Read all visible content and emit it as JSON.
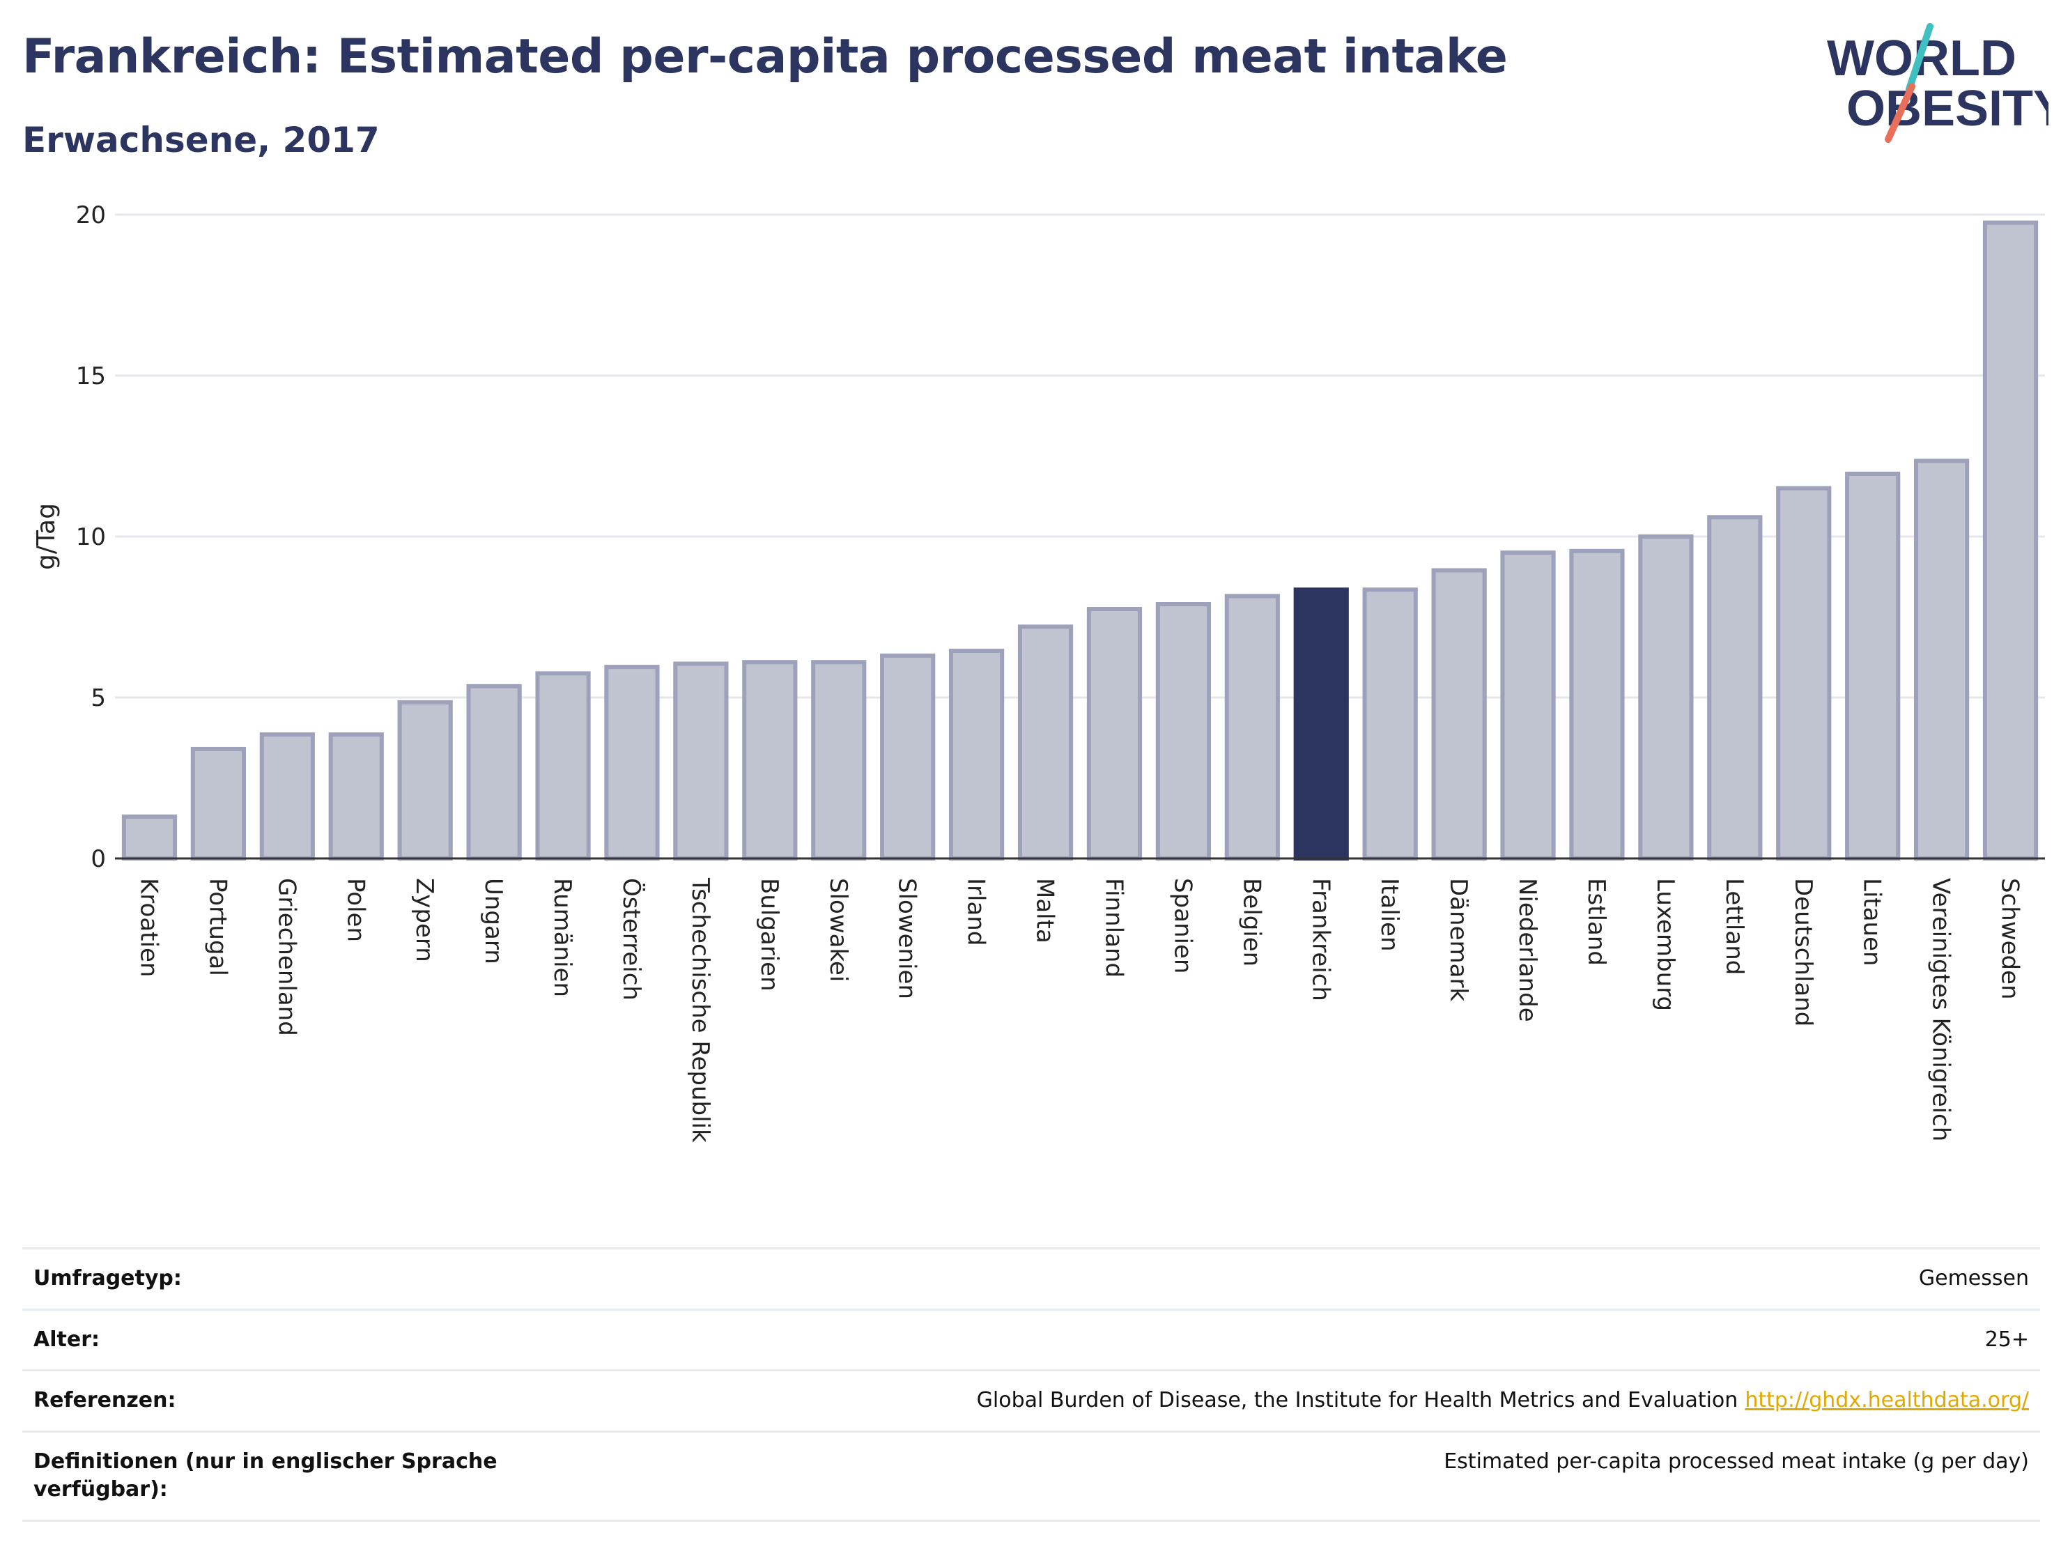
{
  "header": {
    "title": "Frankreich: Estimated per-capita processed meat intake",
    "subtitle": "Erwachsene, 2017"
  },
  "logo": {
    "line1": "WORLD",
    "line2": "OBESITY",
    "colors": {
      "text": "#2c3560",
      "slash_teal": "#3fbfbf",
      "slash_coral": "#e8705a"
    }
  },
  "chart_data": {
    "type": "bar",
    "ylabel": "g/Tag",
    "ylim": [
      0,
      20
    ],
    "yticks": [
      0,
      5,
      10,
      15,
      20
    ],
    "grid": true,
    "highlight": "Frankreich",
    "colors": {
      "bar": "#c0c3d0",
      "bar_border": "#9da1b9",
      "highlight": "#2c3560",
      "grid": "#e3e7ec"
    },
    "categories": [
      "Kroatien",
      "Portugal",
      "Griechenland",
      "Polen",
      "Zypern",
      "Ungarn",
      "Rumänien",
      "Österreich",
      "Tschechische Republik",
      "Bulgarien",
      "Slowakei",
      "Slowenien",
      "Irland",
      "Malta",
      "Finnland",
      "Spanien",
      "Belgien",
      "Frankreich",
      "Italien",
      "Dänemark",
      "Niederlande",
      "Estland",
      "Luxemburg",
      "Lettland",
      "Deutschland",
      "Litauen",
      "Vereinigtes Königreich",
      "Schweden"
    ],
    "values": [
      1.3,
      3.4,
      3.85,
      3.85,
      4.85,
      5.35,
      5.75,
      5.95,
      6.05,
      6.1,
      6.1,
      6.3,
      6.45,
      7.2,
      7.75,
      7.9,
      8.15,
      8.35,
      8.35,
      8.95,
      9.5,
      9.55,
      10.0,
      10.6,
      11.5,
      11.95,
      12.35,
      19.75
    ]
  },
  "meta": {
    "rows": [
      {
        "label": "Umfragetyp:",
        "value": "Gemessen"
      },
      {
        "label": "Alter:",
        "value": "25+"
      },
      {
        "label": "Referenzen:",
        "value": "Global Burden of Disease, the Institute for Health Metrics and Evaluation",
        "link": "http://ghdx.healthdata.org/"
      },
      {
        "label": "Definitionen (nur in englischer Sprache verfügbar):",
        "value": "Estimated per-capita processed meat intake (g per day)"
      }
    ]
  }
}
